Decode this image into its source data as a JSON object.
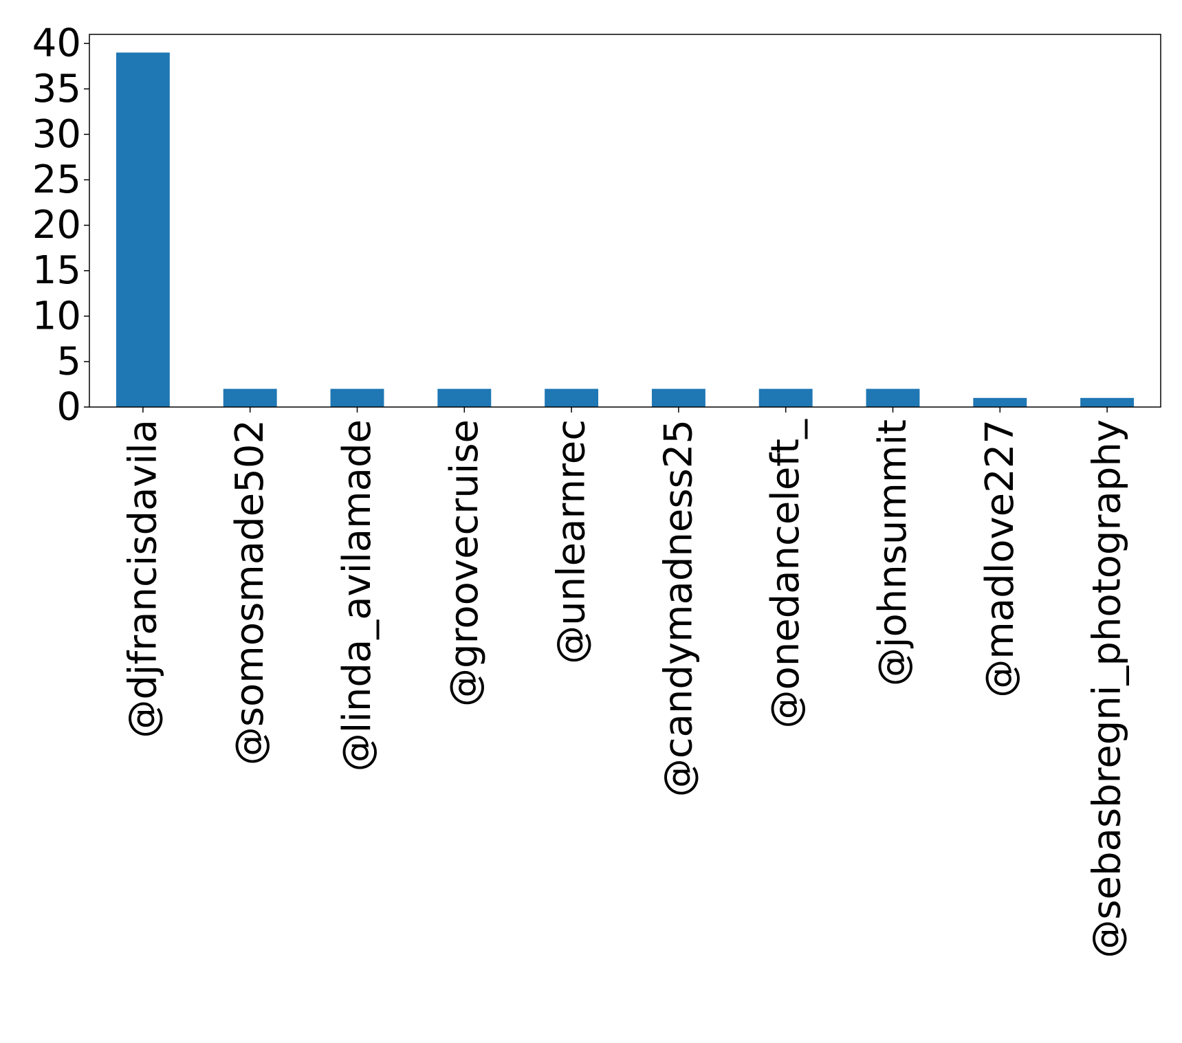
{
  "chart_data": {
    "type": "bar",
    "title": "",
    "xlabel": "",
    "ylabel": "",
    "categories": [
      "@djfrancisdavila",
      "@somosmade502",
      "@linda_avilamade",
      "@groovecruise",
      "@unlearnrec",
      "@candymadness25",
      "@onedanceleft_",
      "@johnsummit",
      "@madlove227",
      "@sebasbregni_photography"
    ],
    "values": [
      39,
      2,
      2,
      2,
      2,
      2,
      2,
      2,
      1,
      1
    ],
    "ylim": [
      0,
      41
    ],
    "yticks": [
      0,
      5,
      10,
      15,
      20,
      25,
      30,
      35,
      40
    ],
    "grid": false,
    "legend": "none",
    "bar_color": "#1f77b4"
  }
}
